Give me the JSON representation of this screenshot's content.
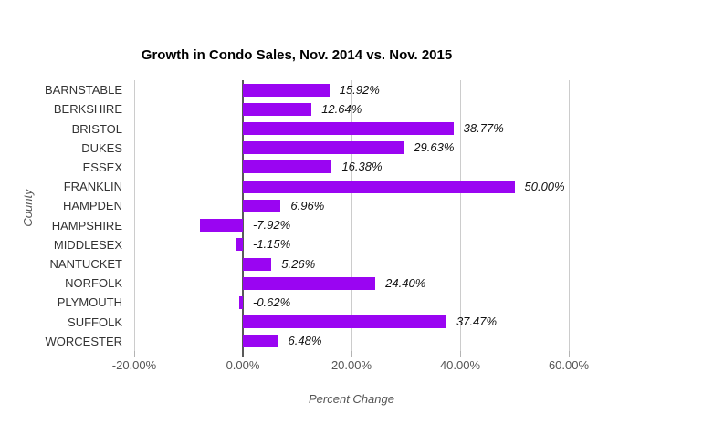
{
  "chart_data": {
    "type": "bar",
    "orientation": "horizontal",
    "title": "Growth in Condo Sales, Nov. 2014 vs. Nov. 2015",
    "xlabel": "Percent Change",
    "ylabel": "County",
    "categories": [
      "BARNSTABLE",
      "BERKSHIRE",
      "BRISTOL",
      "DUKES",
      "ESSEX",
      "FRANKLIN",
      "HAMPDEN",
      "HAMPSHIRE",
      "MIDDLESEX",
      "NANTUCKET",
      "NORFOLK",
      "PLYMOUTH",
      "SUFFOLK",
      "WORCESTER"
    ],
    "values": [
      15.92,
      12.64,
      38.77,
      29.63,
      16.38,
      50.0,
      6.96,
      -7.92,
      -1.15,
      5.26,
      24.4,
      -0.62,
      37.47,
      6.48
    ],
    "value_labels": [
      "15.92%",
      "12.64%",
      "38.77%",
      "29.63%",
      "16.38%",
      "50.00%",
      "6.96%",
      "-7.92%",
      "-1.15%",
      "5.26%",
      "24.40%",
      "-0.62%",
      "37.47%",
      "6.48%"
    ],
    "x_ticks": [
      {
        "label": "-20.00%",
        "value": -20
      },
      {
        "label": "0.00%",
        "value": 0
      },
      {
        "label": "20.00%",
        "value": 20
      },
      {
        "label": "40.00%",
        "value": 40
      },
      {
        "label": "60.00%",
        "value": 60
      }
    ],
    "xlim": [
      -20,
      60
    ],
    "grid": true,
    "legend": "none",
    "colors": {
      "bar": "#9a05f2",
      "gridline": "#cccccc",
      "zero_axis": "#595959",
      "tick_mark": "#b3b3b3",
      "tick_label": "#555555",
      "category_label": "#333333",
      "value_label": "#111111",
      "axis_title": "#555555",
      "title": "#000000",
      "background": "#ffffff"
    }
  }
}
